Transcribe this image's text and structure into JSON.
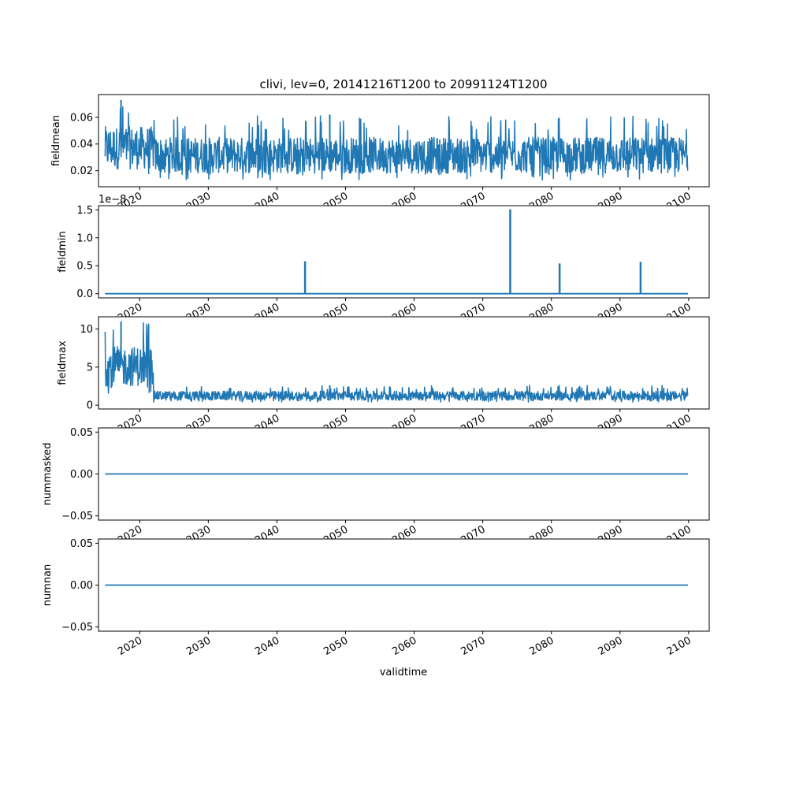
{
  "title": "clivi, lev=0, 20141216T1200 to 20991124T1200",
  "xlabel": "validtime",
  "x_ticks": [
    "2020",
    "2030",
    "2040",
    "2050",
    "2060",
    "2070",
    "2080",
    "2090",
    "2100"
  ],
  "colors": {
    "series": "#1f77b4",
    "axes": "#000000",
    "background": "#ffffff"
  },
  "chart_data": [
    {
      "type": "line",
      "ylabel": "fieldmean",
      "x_start": "2014-12-16",
      "x_end": "2099-11-24",
      "xlim": [
        2014.0,
        2103.0
      ],
      "ylim": [
        0.008,
        0.077
      ],
      "yticks": [
        "0.02",
        "0.04",
        "0.06"
      ],
      "offset_text": "",
      "profile": "noisy band",
      "segments": [
        {
          "from": 2014.96,
          "to": 2022.0,
          "low": 0.015,
          "high": 0.073
        },
        {
          "from": 2022.0,
          "to": 2099.9,
          "low": 0.013,
          "high": 0.062
        }
      ]
    },
    {
      "type": "line",
      "ylabel": "fieldmin",
      "x_start": "2014-12-16",
      "x_end": "2099-11-24",
      "xlim": [
        2014.0,
        2103.0
      ],
      "ylim": [
        -0.075,
        1.575
      ],
      "yticks": [
        "0.0",
        "0.5",
        "1.0",
        "1.5"
      ],
      "offset_text": "1e−8",
      "profile": "baseline zero with isolated spikes",
      "spikes": [
        {
          "x": 2044.1,
          "y": 0.58
        },
        {
          "x": 2074.0,
          "y": 1.51
        },
        {
          "x": 2081.2,
          "y": 0.54
        },
        {
          "x": 2093.0,
          "y": 0.57
        }
      ]
    },
    {
      "type": "line",
      "ylabel": "fieldmax",
      "x_start": "2014-12-16",
      "x_end": "2099-11-24",
      "xlim": [
        2014.0,
        2103.0
      ],
      "ylim": [
        -0.5,
        11.6
      ],
      "yticks": [
        "0",
        "5",
        "10"
      ],
      "offset_text": "",
      "profile": "noisy band",
      "segments": [
        {
          "from": 2014.96,
          "to": 2022.0,
          "low": 1.5,
          "high": 11.0
        },
        {
          "from": 2022.0,
          "to": 2099.9,
          "low": 0.4,
          "high": 2.6
        }
      ]
    },
    {
      "type": "line",
      "ylabel": "nummasked",
      "x_start": "2014-12-16",
      "x_end": "2099-11-24",
      "xlim": [
        2014.0,
        2103.0
      ],
      "ylim": [
        -0.055,
        0.055
      ],
      "yticks": [
        "−0.05",
        "0.00",
        "0.05"
      ],
      "offset_text": "",
      "profile": "constant",
      "value": 0.0
    },
    {
      "type": "line",
      "ylabel": "numnan",
      "x_start": "2014-12-16",
      "x_end": "2099-11-24",
      "xlim": [
        2014.0,
        2103.0
      ],
      "ylim": [
        -0.055,
        0.055
      ],
      "yticks": [
        "−0.05",
        "0.00",
        "0.05"
      ],
      "offset_text": "",
      "profile": "constant",
      "value": 0.0
    }
  ]
}
